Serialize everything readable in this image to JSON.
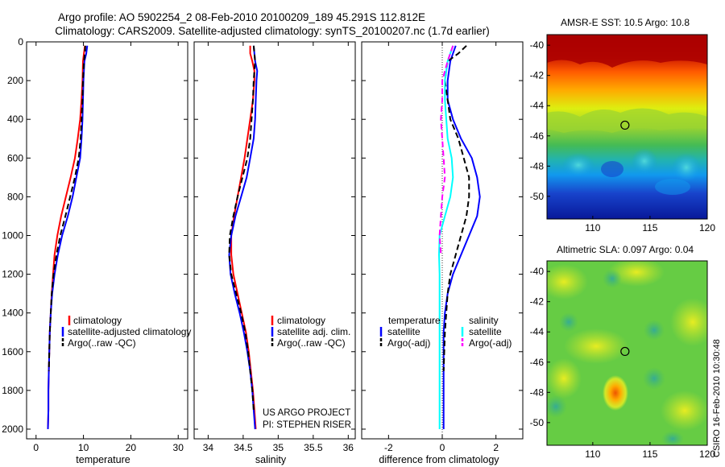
{
  "title_line1": "Argo profile: AO 5902254_2 08-Feb-2010 20100209_189 45.291S 112.812E",
  "title_line2": "Climatology: CARS2009. Satellite-adjusted climatology: synTS_20100207.nc (1.7d earlier)",
  "side_label": "CSIRO 16-Feb-2010 10:30:48",
  "project_line1": "US ARGO PROJECT",
  "project_line2": "PI: STEPHEN RISER",
  "colors": {
    "climatology": "#ff0000",
    "satellite": "#0000ff",
    "argo": "#000000",
    "sal_satellite": "#00ffff",
    "sal_argo": "#ff00ff"
  },
  "chart_data": [
    {
      "type": "line",
      "xlabel": "temperature",
      "xlim": [
        -2,
        32
      ],
      "ylim": [
        0,
        2050
      ],
      "y_reversed": true,
      "xticks": [
        "0",
        "10",
        "20",
        "30"
      ],
      "yticks": [
        "0",
        "200",
        "400",
        "600",
        "800",
        "1000",
        "1200",
        "1400",
        "1600",
        "1800",
        "2000"
      ],
      "legend": [
        "climatology",
        "satellite-adjusted climatology",
        "Argo(..raw -QC)"
      ],
      "series": [
        {
          "name": "climatology",
          "style": "solid",
          "color": "#ff0000",
          "points": [
            [
              10.3,
              20
            ],
            [
              10.1,
              60
            ],
            [
              9.9,
              100
            ],
            [
              9.8,
              200
            ],
            [
              9.6,
              300
            ],
            [
              9.3,
              400
            ],
            [
              8.8,
              500
            ],
            [
              8.2,
              600
            ],
            [
              7.3,
              700
            ],
            [
              6.3,
              800
            ],
            [
              5.3,
              900
            ],
            [
              4.5,
              1000
            ],
            [
              3.9,
              1100
            ],
            [
              3.6,
              1200
            ],
            [
              3.3,
              1300
            ],
            [
              3.1,
              1400
            ],
            [
              2.9,
              1500
            ],
            [
              2.8,
              1600
            ],
            [
              2.7,
              1700
            ],
            [
              2.6,
              1800
            ],
            [
              2.6,
              1900
            ],
            [
              2.5,
              2000
            ]
          ]
        },
        {
          "name": "satellite-adjusted climatology",
          "style": "solid",
          "color": "#0000ff",
          "points": [
            [
              10.8,
              20
            ],
            [
              10.6,
              60
            ],
            [
              10.2,
              100
            ],
            [
              10.0,
              200
            ],
            [
              9.9,
              300
            ],
            [
              9.8,
              400
            ],
            [
              9.6,
              500
            ],
            [
              9.3,
              600
            ],
            [
              8.5,
              700
            ],
            [
              7.7,
              800
            ],
            [
              6.7,
              900
            ],
            [
              5.5,
              1000
            ],
            [
              4.6,
              1100
            ],
            [
              3.9,
              1200
            ],
            [
              3.4,
              1300
            ],
            [
              3.1,
              1400
            ],
            [
              2.9,
              1500
            ],
            [
              2.8,
              1600
            ],
            [
              2.7,
              1700
            ],
            [
              2.6,
              1800
            ],
            [
              2.6,
              1900
            ],
            [
              2.5,
              2000
            ]
          ]
        },
        {
          "name": "Argo(..raw -QC)",
          "style": "dashed",
          "color": "#000000",
          "points": [
            [
              10.4,
              20
            ],
            [
              10.3,
              60
            ],
            [
              10.1,
              100
            ],
            [
              9.9,
              200
            ],
            [
              9.8,
              300
            ],
            [
              9.6,
              400
            ],
            [
              9.4,
              500
            ],
            [
              9.0,
              600
            ],
            [
              8.2,
              700
            ],
            [
              7.2,
              800
            ],
            [
              6.2,
              900
            ],
            [
              5.1,
              1000
            ],
            [
              4.3,
              1100
            ],
            [
              3.7,
              1200
            ],
            [
              3.3,
              1300
            ],
            [
              3.1,
              1400
            ],
            [
              2.9,
              1500
            ],
            [
              2.8,
              1600
            ],
            [
              2.7,
              1700
            ]
          ]
        }
      ]
    },
    {
      "type": "line",
      "xlabel": "salinity",
      "xlim": [
        33.8,
        36.1
      ],
      "ylim": [
        0,
        2050
      ],
      "y_reversed": true,
      "xticks": [
        "34",
        "34.5",
        "35",
        "35.5",
        "36"
      ],
      "legend": [
        "climatology",
        "satellite adj. clim.",
        "Argo(..raw -QC)"
      ],
      "series": [
        {
          "name": "climatology",
          "style": "solid",
          "color": "#ff0000",
          "points": [
            [
              34.6,
              20
            ],
            [
              34.6,
              60
            ],
            [
              34.63,
              100
            ],
            [
              34.66,
              150
            ],
            [
              34.66,
              200
            ],
            [
              34.64,
              300
            ],
            [
              34.6,
              400
            ],
            [
              34.56,
              500
            ],
            [
              34.52,
              600
            ],
            [
              34.47,
              700
            ],
            [
              34.42,
              800
            ],
            [
              34.37,
              900
            ],
            [
              34.33,
              1000
            ],
            [
              34.33,
              1100
            ],
            [
              34.36,
              1200
            ],
            [
              34.42,
              1300
            ],
            [
              34.48,
              1400
            ],
            [
              34.54,
              1500
            ],
            [
              34.58,
              1600
            ],
            [
              34.61,
              1700
            ],
            [
              34.64,
              1800
            ],
            [
              34.66,
              1900
            ],
            [
              34.68,
              2000
            ]
          ]
        },
        {
          "name": "satellite adj. clim.",
          "style": "solid",
          "color": "#0000ff",
          "points": [
            [
              34.65,
              20
            ],
            [
              34.66,
              60
            ],
            [
              34.67,
              100
            ],
            [
              34.7,
              150
            ],
            [
              34.69,
              200
            ],
            [
              34.68,
              300
            ],
            [
              34.67,
              400
            ],
            [
              34.65,
              500
            ],
            [
              34.6,
              600
            ],
            [
              34.55,
              700
            ],
            [
              34.47,
              800
            ],
            [
              34.39,
              900
            ],
            [
              34.33,
              1000
            ],
            [
              34.3,
              1100
            ],
            [
              34.32,
              1200
            ],
            [
              34.38,
              1300
            ],
            [
              34.45,
              1400
            ],
            [
              34.51,
              1500
            ],
            [
              34.56,
              1600
            ],
            [
              34.6,
              1700
            ],
            [
              34.63,
              1800
            ],
            [
              34.65,
              1900
            ],
            [
              34.67,
              2000
            ]
          ]
        },
        {
          "name": "Argo(..raw -QC)",
          "style": "dashed",
          "color": "#000000",
          "points": [
            [
              34.65,
              20
            ],
            [
              34.66,
              60
            ],
            [
              34.67,
              100
            ],
            [
              34.66,
              150
            ],
            [
              34.65,
              200
            ],
            [
              34.64,
              300
            ],
            [
              34.62,
              400
            ],
            [
              34.6,
              500
            ],
            [
              34.56,
              600
            ],
            [
              34.49,
              700
            ],
            [
              34.42,
              800
            ],
            [
              34.36,
              900
            ],
            [
              34.31,
              1000
            ],
            [
              34.3,
              1100
            ],
            [
              34.33,
              1200
            ],
            [
              34.4,
              1300
            ],
            [
              34.47,
              1400
            ],
            [
              34.53,
              1500
            ],
            [
              34.57,
              1600
            ],
            [
              34.6,
              1700
            ],
            [
              34.63,
              1800
            ],
            [
              34.65,
              1900
            ]
          ]
        }
      ]
    },
    {
      "type": "line",
      "xlabel": "difference from climatology",
      "xlim": [
        -3,
        3
      ],
      "ylim": [
        0,
        2050
      ],
      "y_reversed": true,
      "xticks": [
        "-2",
        "0",
        "2"
      ],
      "legend_groups": [
        {
          "title": "temperature",
          "items": [
            "satellite",
            "Argo(-adj)"
          ]
        },
        {
          "title": "salinity",
          "items": [
            "satellite",
            "Argo(-adj)"
          ]
        }
      ],
      "series": [
        {
          "name": "temperature satellite",
          "style": "solid",
          "color": "#0000ff",
          "points": [
            [
              0.5,
              20
            ],
            [
              0.4,
              60
            ],
            [
              0.3,
              100
            ],
            [
              0.2,
              200
            ],
            [
              0.2,
              300
            ],
            [
              0.4,
              400
            ],
            [
              0.7,
              500
            ],
            [
              1.1,
              600
            ],
            [
              1.3,
              700
            ],
            [
              1.4,
              800
            ],
            [
              1.3,
              900
            ],
            [
              1.0,
              1000
            ],
            [
              0.7,
              1100
            ],
            [
              0.4,
              1200
            ],
            [
              0.2,
              1300
            ],
            [
              0.1,
              1400
            ],
            [
              0.05,
              1500
            ],
            [
              0.05,
              1700
            ],
            [
              0.05,
              2000
            ]
          ]
        },
        {
          "name": "temperature Argo(-adj)",
          "style": "dashed",
          "color": "#000000",
          "points": [
            [
              0.9,
              20
            ],
            [
              0.6,
              60
            ],
            [
              0.2,
              100
            ],
            [
              0.1,
              200
            ],
            [
              0.2,
              300
            ],
            [
              0.3,
              400
            ],
            [
              0.6,
              500
            ],
            [
              0.8,
              600
            ],
            [
              1.0,
              700
            ],
            [
              1.0,
              800
            ],
            [
              0.9,
              900
            ],
            [
              0.7,
              1000
            ],
            [
              0.5,
              1100
            ],
            [
              0.3,
              1200
            ],
            [
              0.2,
              1300
            ],
            [
              0.1,
              1500
            ],
            [
              0.05,
              1700
            ]
          ]
        },
        {
          "name": "salinity satellite",
          "style": "solid",
          "color": "#00ffff",
          "points": [
            [
              0.4,
              20
            ],
            [
              0.3,
              60
            ],
            [
              0.2,
              100
            ],
            [
              0.1,
              200
            ],
            [
              0.1,
              300
            ],
            [
              0.15,
              400
            ],
            [
              0.2,
              500
            ],
            [
              0.35,
              600
            ],
            [
              0.4,
              700
            ],
            [
              0.3,
              800
            ],
            [
              0.1,
              900
            ],
            [
              -0.1,
              1000
            ],
            [
              -0.12,
              1100
            ],
            [
              -0.1,
              1200
            ],
            [
              -0.1,
              1400
            ],
            [
              -0.1,
              1600
            ],
            [
              -0.1,
              1800
            ],
            [
              -0.1,
              2000
            ]
          ]
        },
        {
          "name": "salinity Argo(-adj)",
          "style": "dashed",
          "color": "#ff00ff",
          "points": [
            [
              0.4,
              20
            ],
            [
              0.3,
              60
            ],
            [
              0.2,
              100
            ],
            [
              0.0,
              200
            ],
            [
              0.0,
              300
            ],
            [
              -0.05,
              400
            ],
            [
              0.0,
              500
            ],
            [
              0.05,
              600
            ],
            [
              0.1,
              700
            ],
            [
              0.0,
              800
            ],
            [
              -0.05,
              900
            ],
            [
              -0.1,
              1000
            ],
            [
              -0.05,
              1100
            ]
          ]
        }
      ]
    },
    {
      "type": "heatmap",
      "title": "AMSR-E SST: 10.5 Argo: 10.8",
      "xlim": [
        106,
        120
      ],
      "ylim": [
        -51.5,
        -39.3
      ],
      "xticks": [
        "110",
        "115",
        "120"
      ],
      "yticks": [
        "-40",
        "-42",
        "-44",
        "-46",
        "-48",
        "-50"
      ],
      "marker": [
        112.812,
        -45.291
      ]
    },
    {
      "type": "heatmap",
      "title": "Altimetric SLA: 0.097 Argo: 0.04",
      "xlim": [
        106,
        120
      ],
      "ylim": [
        -51.5,
        -39.3
      ],
      "xticks": [
        "110",
        "115",
        "120"
      ],
      "yticks": [
        "-40",
        "-42",
        "-44",
        "-46",
        "-48",
        "-50"
      ],
      "marker": [
        112.812,
        -45.291
      ]
    }
  ]
}
